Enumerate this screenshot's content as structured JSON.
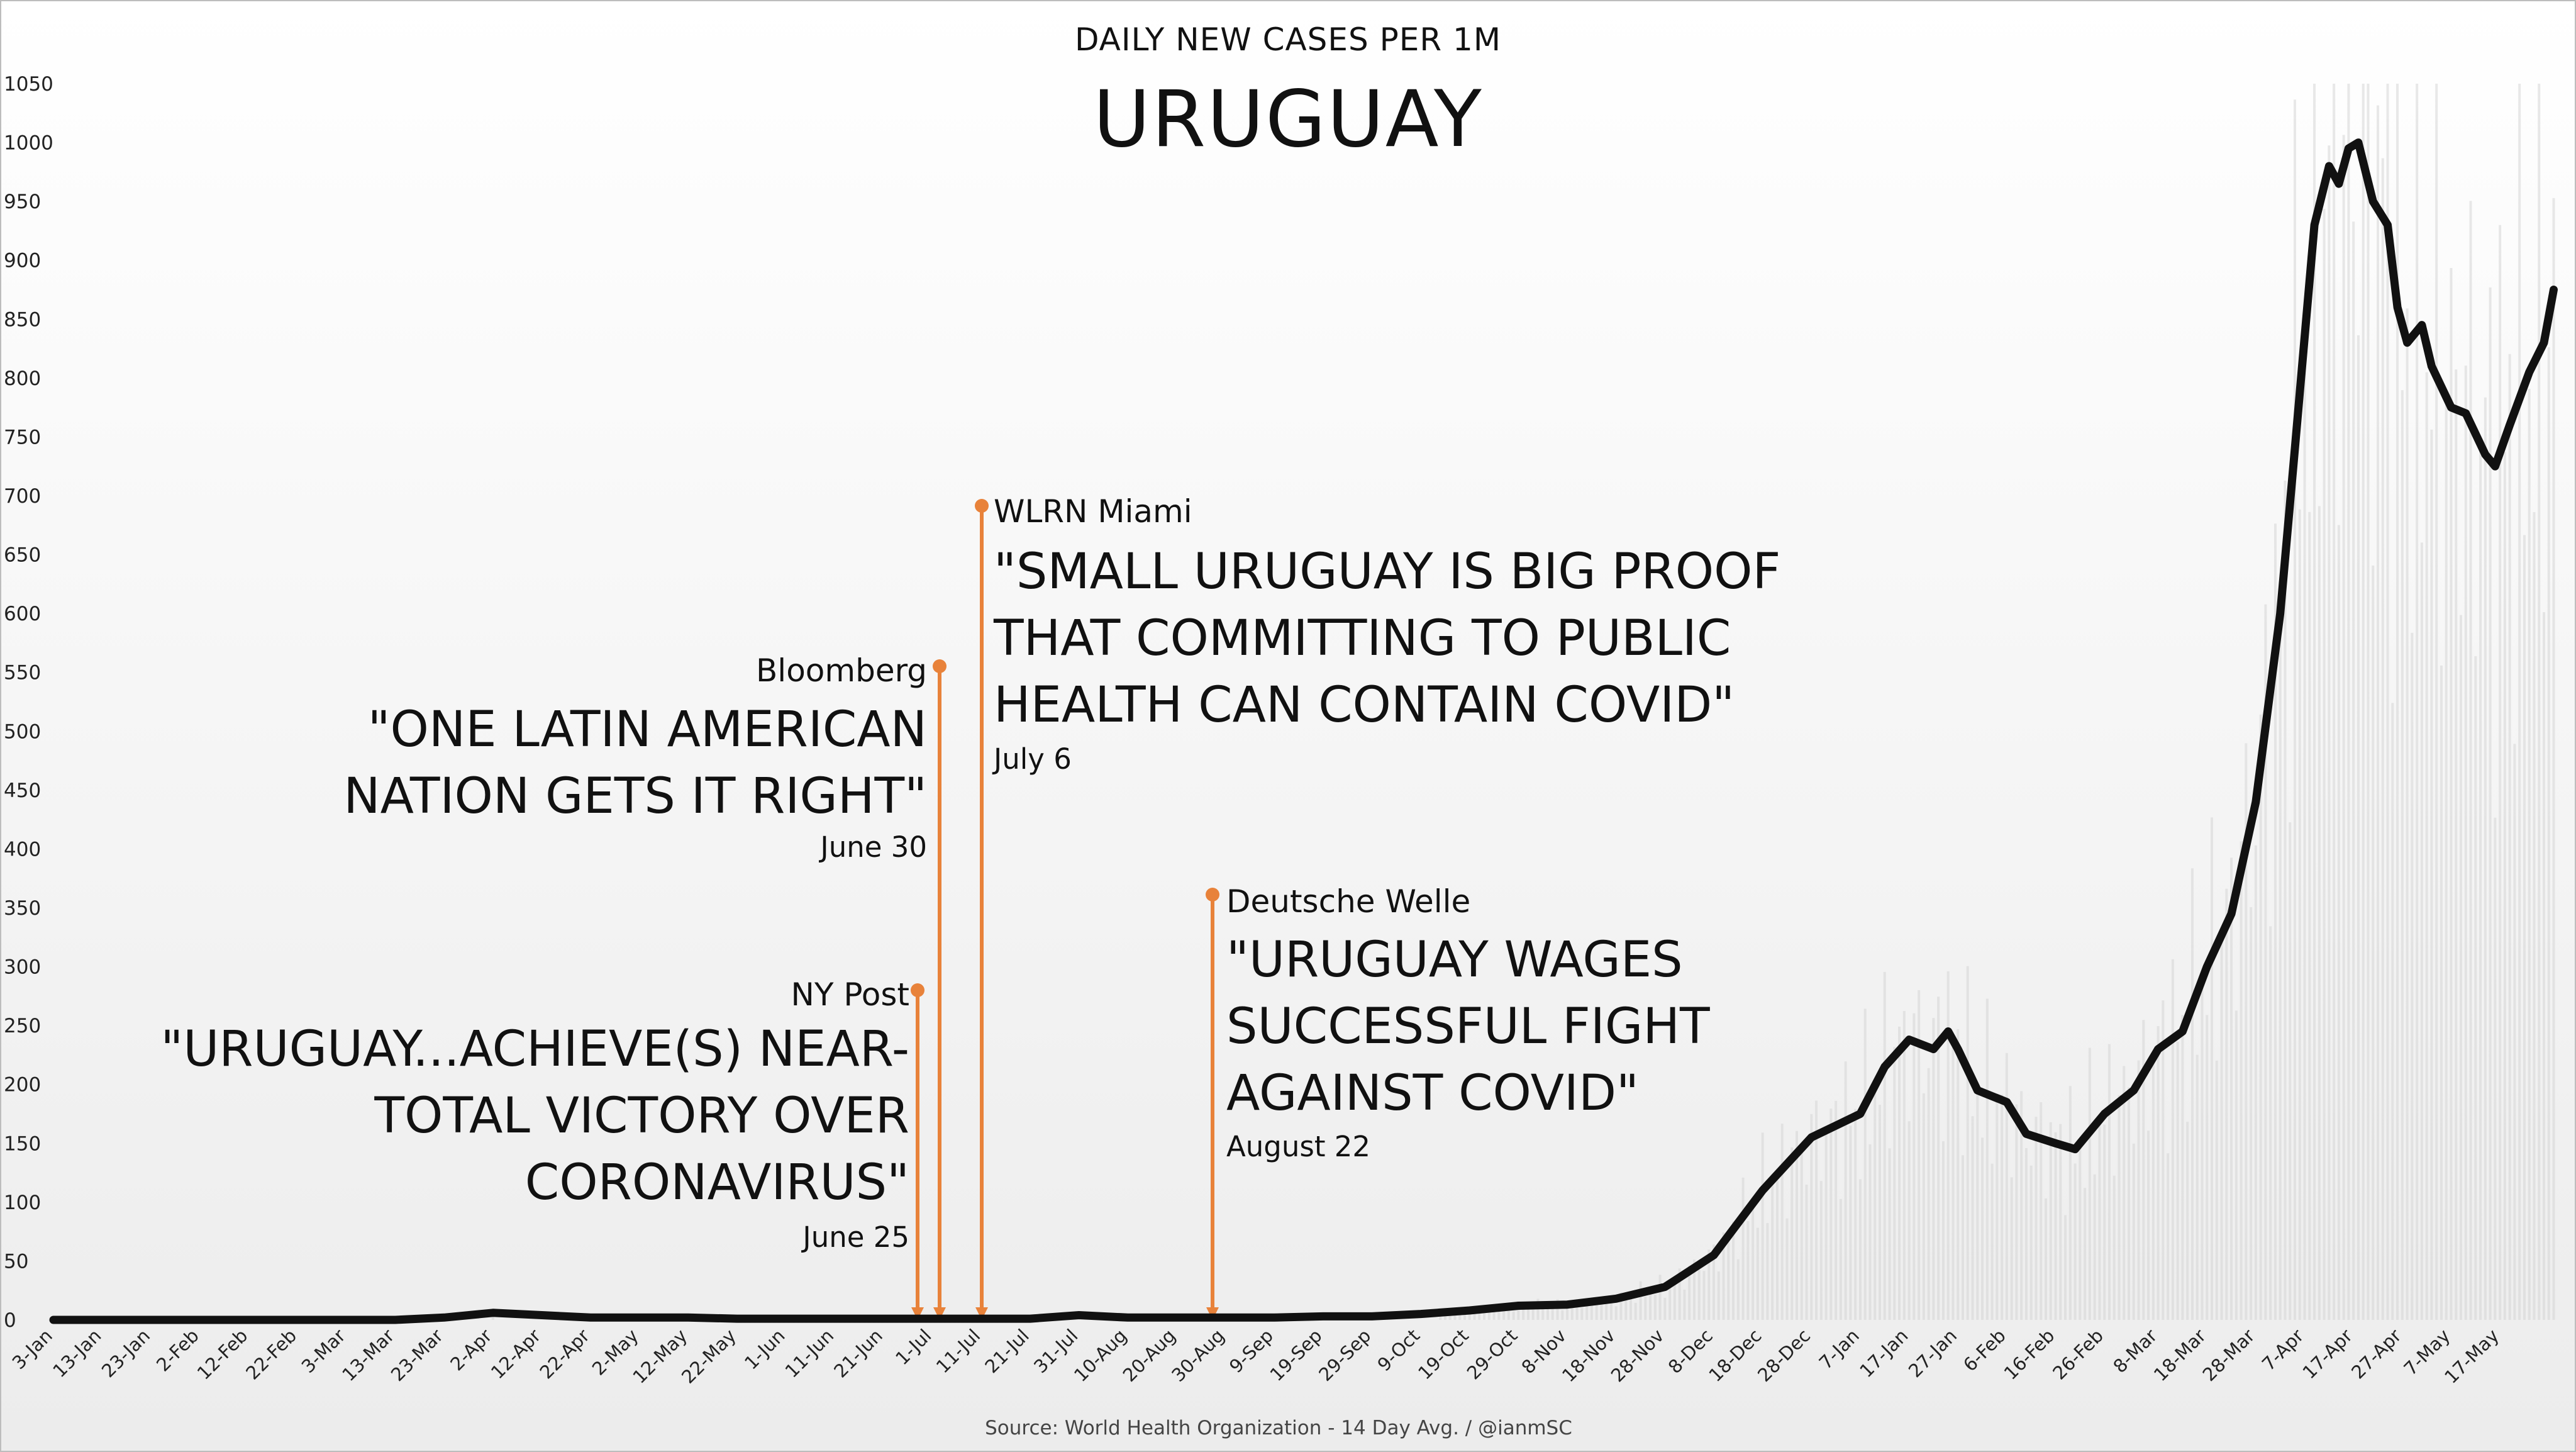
{
  "chart_data": {
    "type": "line",
    "supertitle": "DAILY NEW CASES PER 1M",
    "title": "URUGUAY",
    "source": "Source: World Health Organization - 14 Day Avg. / @ianmSC",
    "ylim": [
      0,
      1050
    ],
    "yticks": [
      0,
      50,
      100,
      150,
      200,
      250,
      300,
      350,
      400,
      450,
      500,
      550,
      600,
      650,
      700,
      750,
      800,
      850,
      900,
      950,
      1000,
      1050
    ],
    "x_start": "3-Jan",
    "x_day_count": 510,
    "xtick_labels": [
      "3-Jan",
      "13-Jan",
      "23-Jan",
      "2-Feb",
      "12-Feb",
      "22-Feb",
      "3-Mar",
      "13-Mar",
      "23-Mar",
      "2-Apr",
      "12-Apr",
      "22-Apr",
      "2-May",
      "12-May",
      "22-May",
      "1-Jun",
      "11-Jun",
      "21-Jun",
      "1-Jul",
      "11-Jul",
      "21-Jul",
      "31-Jul",
      "10-Aug",
      "20-Aug",
      "30-Aug",
      "9-Sep",
      "19-Sep",
      "29-Sep",
      "9-Oct",
      "19-Oct",
      "29-Oct",
      "8-Nov",
      "18-Nov",
      "28-Nov",
      "8-Dec",
      "18-Dec",
      "28-Dec",
      "7-Jan",
      "17-Jan",
      "27-Jan",
      "6-Feb",
      "16-Feb",
      "26-Feb",
      "8-Mar",
      "18-Mar",
      "28-Mar",
      "7-Apr",
      "17-Apr",
      "27-Apr",
      "7-May",
      "17-May"
    ],
    "grid": false,
    "legend": "none",
    "series": [
      {
        "color": "#111111",
        "points": [
          {
            "x": "3-Jan",
            "y": 0
          },
          {
            "x": "13-Mar",
            "y": 0
          },
          {
            "x": "23-Mar",
            "y": 2
          },
          {
            "x": "2-Apr",
            "y": 6
          },
          {
            "x": "12-Apr",
            "y": 4
          },
          {
            "x": "22-Apr",
            "y": 2
          },
          {
            "x": "2-May",
            "y": 2
          },
          {
            "x": "12-May",
            "y": 2
          },
          {
            "x": "22-May",
            "y": 1
          },
          {
            "x": "1-Jun",
            "y": 1
          },
          {
            "x": "11-Jun",
            "y": 1
          },
          {
            "x": "21-Jun",
            "y": 1
          },
          {
            "x": "1-Jul",
            "y": 1
          },
          {
            "x": "11-Jul",
            "y": 1
          },
          {
            "x": "21-Jul",
            "y": 1
          },
          {
            "x": "31-Jul",
            "y": 4
          },
          {
            "x": "10-Aug",
            "y": 2
          },
          {
            "x": "20-Aug",
            "y": 2
          },
          {
            "x": "30-Aug",
            "y": 2
          },
          {
            "x": "9-Sep",
            "y": 2
          },
          {
            "x": "19-Sep",
            "y": 3
          },
          {
            "x": "29-Sep",
            "y": 3
          },
          {
            "x": "9-Oct",
            "y": 5
          },
          {
            "x": "19-Oct",
            "y": 8
          },
          {
            "x": "29-Oct",
            "y": 12
          },
          {
            "x": "8-Nov",
            "y": 13
          },
          {
            "x": "18-Nov",
            "y": 18
          },
          {
            "x": "28-Nov",
            "y": 28
          },
          {
            "x": "8-Dec",
            "y": 55
          },
          {
            "x": "18-Dec",
            "y": 110
          },
          {
            "x": "28-Dec",
            "y": 155
          },
          {
            "x": "7-Jan",
            "y": 175
          },
          {
            "x": "12-Jan",
            "y": 215
          },
          {
            "x": "17-Jan",
            "y": 238
          },
          {
            "x": "22-Jan",
            "y": 230
          },
          {
            "x": "25-Jan",
            "y": 245
          },
          {
            "x": "27-Jan",
            "y": 230
          },
          {
            "x": "31-Jan",
            "y": 195
          },
          {
            "x": "6-Feb",
            "y": 185
          },
          {
            "x": "10-Feb",
            "y": 158
          },
          {
            "x": "16-Feb",
            "y": 150
          },
          {
            "x": "20-Feb",
            "y": 145
          },
          {
            "x": "26-Feb",
            "y": 175
          },
          {
            "x": "3-Mar",
            "y": 195
          },
          {
            "x": "8-Mar",
            "y": 230
          },
          {
            "x": "13-Mar",
            "y": 245
          },
          {
            "x": "18-Mar",
            "y": 300
          },
          {
            "x": "23-Mar",
            "y": 345
          },
          {
            "x": "28-Mar",
            "y": 440
          },
          {
            "x": "2-Apr",
            "y": 600
          },
          {
            "x": "5-Apr",
            "y": 740
          },
          {
            "x": "9-Apr",
            "y": 930
          },
          {
            "x": "12-Apr",
            "y": 980
          },
          {
            "x": "14-Apr",
            "y": 965
          },
          {
            "x": "16-Apr",
            "y": 995
          },
          {
            "x": "18-Apr",
            "y": 1000
          },
          {
            "x": "21-Apr",
            "y": 950
          },
          {
            "x": "24-Apr",
            "y": 930
          },
          {
            "x": "26-Apr",
            "y": 860
          },
          {
            "x": "28-Apr",
            "y": 830
          },
          {
            "x": "1-May",
            "y": 845
          },
          {
            "x": "3-May",
            "y": 810
          },
          {
            "x": "7-May",
            "y": 775
          },
          {
            "x": "10-May",
            "y": 770
          },
          {
            "x": "14-May",
            "y": 735
          },
          {
            "x": "16-May",
            "y": 725
          },
          {
            "x": "19-May",
            "y": 760
          },
          {
            "x": "23-May",
            "y": 805
          },
          {
            "x": "26-May",
            "y": 830
          },
          {
            "x": "28-May",
            "y": 875
          }
        ]
      }
    ],
    "annotations": [
      {
        "source": "NY Post",
        "quote_lines": [
          "\"URUGUAY...ACHIEVE(S) NEAR-",
          "TOTAL VICTORY OVER",
          "CORONAVIRUS\""
        ],
        "date": "June 25",
        "color": "#e8823a"
      },
      {
        "source": "Bloomberg",
        "quote_lines": [
          "\"ONE LATIN AMERICAN",
          "NATION GETS IT RIGHT\""
        ],
        "date": "June 30",
        "color": "#e8823a"
      },
      {
        "source": "WLRN Miami",
        "quote_lines": [
          "\"SMALL URUGUAY IS BIG PROOF",
          "THAT COMMITTING TO PUBLIC",
          "HEALTH CAN CONTAIN COVID\""
        ],
        "date": "July 6",
        "color": "#e8823a"
      },
      {
        "source": "Deutsche Welle",
        "quote_lines": [
          "\"URUGUAY WAGES",
          "SUCCESSFUL FIGHT",
          "AGAINST COVID\""
        ],
        "date": "August 22",
        "color": "#e8823a"
      }
    ]
  }
}
